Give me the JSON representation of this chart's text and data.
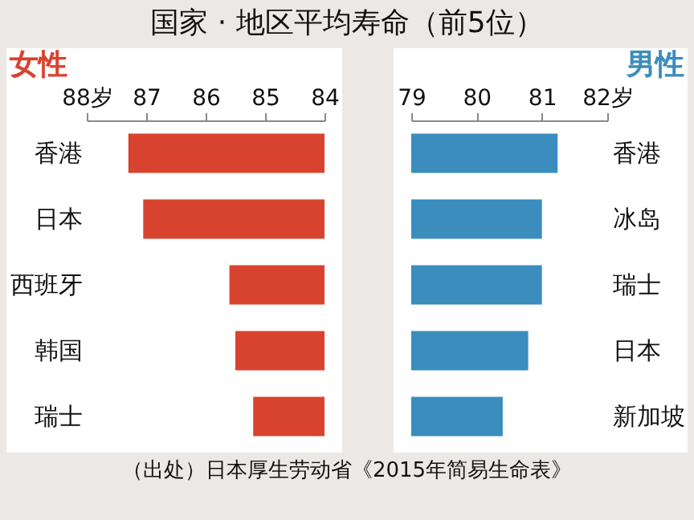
{
  "chart_data": [
    {
      "type": "bar",
      "orientation": "horizontal",
      "title": "国家 · 地区平均寿命（前5位）",
      "subtitle": "女性",
      "categories": [
        "香港",
        "日本",
        "西班牙",
        "韩国",
        "瑞士"
      ],
      "values": [
        87.3,
        87.05,
        85.6,
        85.5,
        85.2
      ],
      "color": "#d8432f",
      "xlim": [
        88,
        84
      ],
      "xticks": [
        {
          "value": 88,
          "label": "88岁"
        },
        87,
        86,
        85,
        84
      ],
      "annotations": [
        "（出处）日本厚生劳动省《2015年简易生命表》"
      ]
    },
    {
      "type": "bar",
      "orientation": "horizontal",
      "subtitle": "男性",
      "categories": [
        "香港",
        "冰岛",
        "瑞士",
        "日本",
        "新加坡"
      ],
      "values": [
        81.24,
        81.0,
        81.0,
        80.79,
        80.4
      ],
      "color": "#3a8dbd",
      "xlim": [
        79,
        82
      ],
      "xticks": [
        79,
        80,
        81,
        {
          "value": 82,
          "label": "82岁"
        }
      ]
    }
  ]
}
